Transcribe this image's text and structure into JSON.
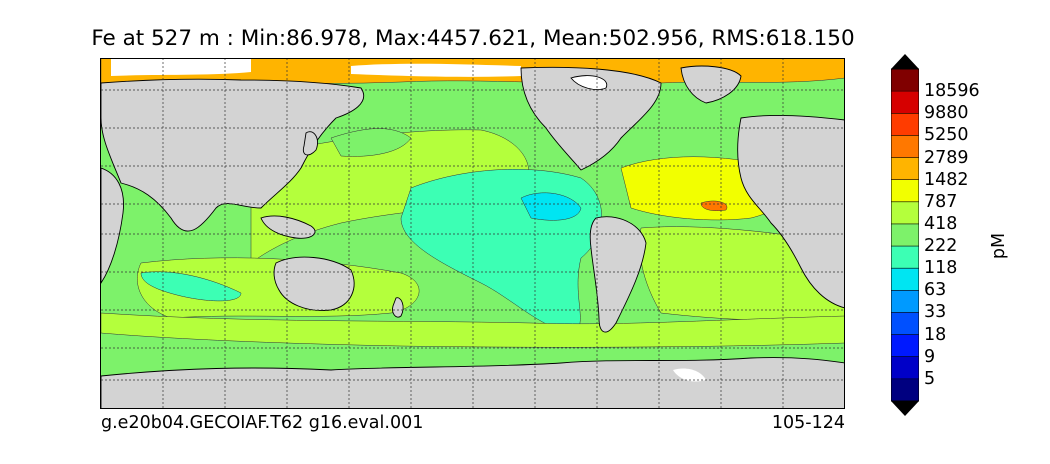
{
  "title": "Fe at 527 m : Min:86.978, Max:4457.621, Mean:502.956, RMS:618.150",
  "footer": {
    "case_name": "g.e20b04.GECOIAF.T62 g16.eval.001",
    "year_range": "105-124"
  },
  "colorbar": {
    "units": "pM",
    "labels": [
      "18596",
      "9880",
      "5250",
      "2789",
      "1482",
      "787",
      "418",
      "222",
      "118",
      "63",
      "33",
      "18",
      "9",
      "5"
    ],
    "colors_top_to_bottom": [
      "#800000",
      "#d60000",
      "#ff3c00",
      "#ff7800",
      "#ffb400",
      "#f2ff00",
      "#b4ff3c",
      "#7df26a",
      "#3cffb4",
      "#00e5f2",
      "#009aff",
      "#0050ff",
      "#0019ff",
      "#0000c8",
      "#000080"
    ],
    "over_color": "#000000",
    "under_color": "#000000"
  },
  "map": {
    "land_color": "#d3d3d3",
    "missing_color": "#ffffff",
    "grid": "dotted"
  }
}
